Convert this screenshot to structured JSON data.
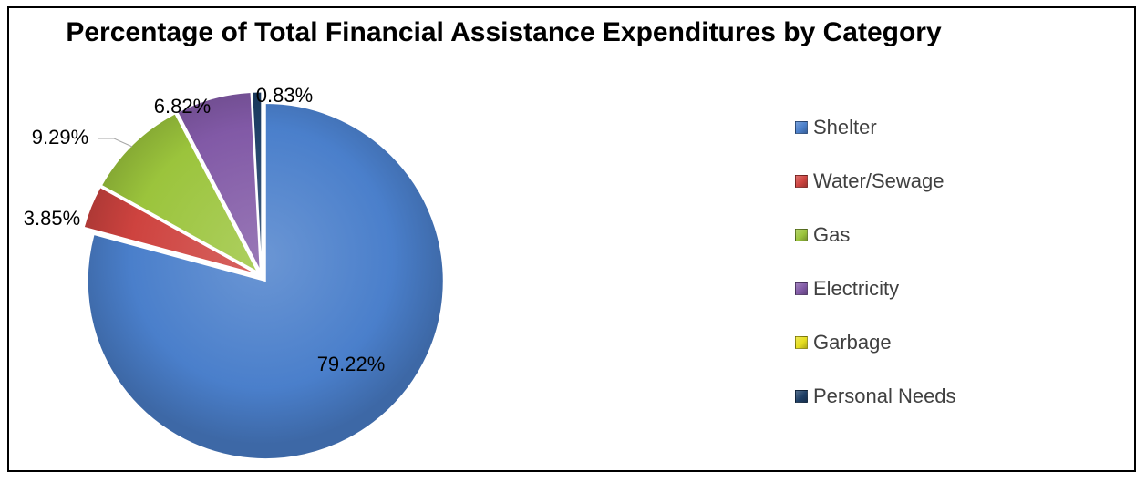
{
  "chart_data": {
    "type": "pie",
    "title": "Percentage of Total Financial Assistance Expenditures by Category",
    "categories": [
      "Shelter",
      "Water/Sewage",
      "Gas",
      "Electricity",
      "Garbage",
      "Personal Needs"
    ],
    "values": [
      79.22,
      3.85,
      9.29,
      6.82,
      0.0,
      0.83
    ],
    "labels": [
      "79.22%",
      "3.85%",
      "9.29%",
      "6.82%",
      "",
      "0.83%"
    ],
    "colors": [
      "#4A7FCB",
      "#CE433F",
      "#9BC43C",
      "#8159A6",
      "#E6DE1E",
      "#1E3F66"
    ],
    "legend_position": "right",
    "exploded": true,
    "start_angle_deg": 0,
    "direction": "clockwise"
  }
}
